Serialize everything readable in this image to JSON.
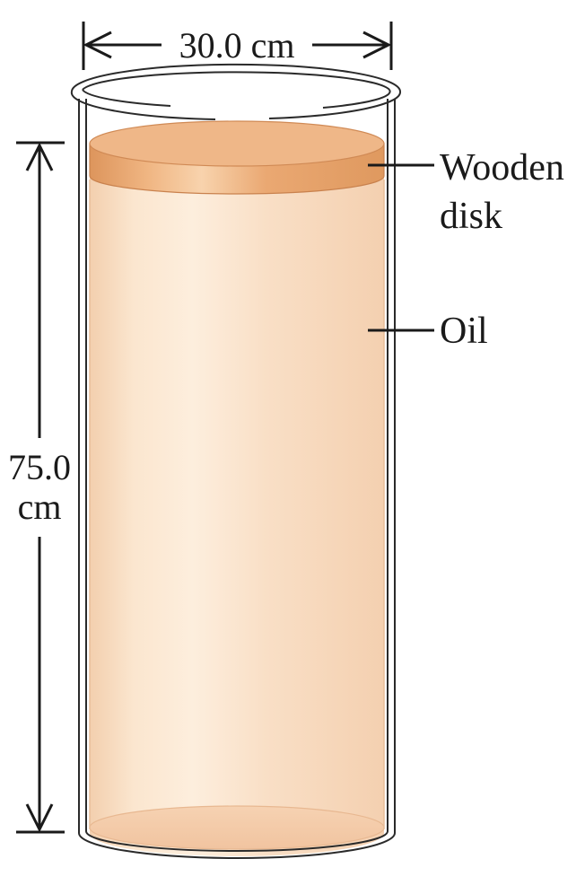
{
  "labels": {
    "diameter": "30.0 cm",
    "height_value": "75.0",
    "height_unit": "cm",
    "disk_line1": "Wooden",
    "disk_line2": "disk",
    "oil": "Oil"
  },
  "colors": {
    "oil_light": "#fbe8d2",
    "oil_mid": "#f7d8bc",
    "oil_edge": "#f0c8a4",
    "disk_top": "#efb788",
    "disk_side": "#e29a62",
    "disk_highlight": "#f7cfa7",
    "line": "#1a1a1a"
  }
}
